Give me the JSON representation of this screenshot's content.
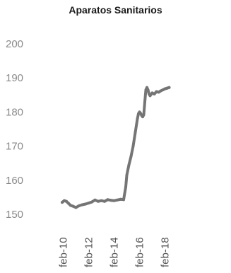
{
  "chart_data": {
    "type": "line",
    "title": "Aparatos Sanitarios",
    "xlabel": "",
    "ylabel": "",
    "ylim": [
      150,
      200
    ],
    "yticks": [
      150,
      160,
      170,
      180,
      190,
      200
    ],
    "xticks": [
      "feb-10",
      "feb-12",
      "feb-14",
      "feb-16",
      "feb-18"
    ],
    "grid": false,
    "series": [
      {
        "color": "#757575",
        "x": [
          "2010-01",
          "2010-03",
          "2010-05",
          "2010-07",
          "2010-09",
          "2010-11",
          "2011-02",
          "2011-05",
          "2011-08",
          "2011-11",
          "2012-02",
          "2012-05",
          "2012-08",
          "2012-11",
          "2013-02",
          "2013-05",
          "2013-08",
          "2013-11",
          "2014-02",
          "2014-05",
          "2014-08",
          "2014-11",
          "2015-01",
          "2015-02",
          "2015-03",
          "2015-04",
          "2015-06",
          "2015-08",
          "2015-10",
          "2015-12",
          "2016-01",
          "2016-02",
          "2016-03",
          "2016-04",
          "2016-05",
          "2016-06",
          "2016-07",
          "2016-08",
          "2016-09",
          "2016-10",
          "2016-11",
          "2016-12",
          "2017-02",
          "2017-04",
          "2017-06",
          "2017-08",
          "2017-10",
          "2017-12",
          "2018-02",
          "2018-04",
          "2018-06"
        ],
        "values": [
          153.5,
          154.0,
          153.8,
          153.2,
          152.6,
          152.4,
          152.0,
          152.5,
          152.8,
          153.0,
          153.3,
          153.6,
          154.2,
          153.8,
          154.0,
          153.8,
          154.3,
          154.1,
          154.0,
          154.2,
          154.4,
          154.3,
          158.0,
          161.5,
          163.0,
          164.5,
          167.0,
          170.0,
          174.0,
          178.0,
          179.5,
          180.0,
          179.6,
          179.0,
          178.6,
          179.2,
          183.0,
          186.5,
          187.2,
          186.5,
          185.3,
          184.8,
          185.6,
          185.3,
          186.0,
          185.8,
          186.2,
          186.5,
          186.8,
          187.0,
          187.2
        ]
      }
    ]
  }
}
